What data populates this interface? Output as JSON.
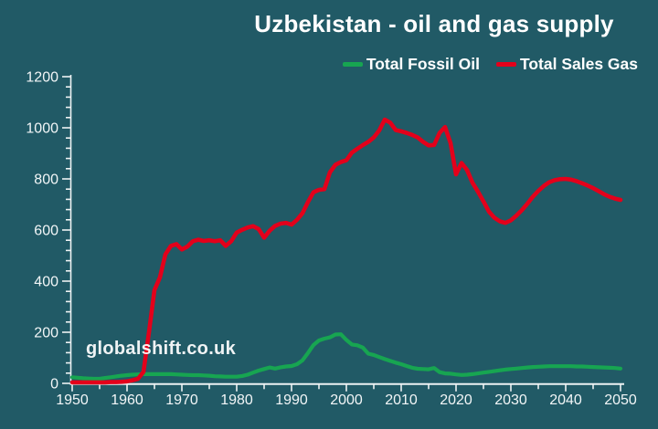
{
  "page": {
    "background_color": "#215A66"
  },
  "header": {
    "title": "Uzbekistan - oil and gas supply"
  },
  "legend": {
    "position": "top-right",
    "items": [
      {
        "label": "Total Fossil Oil",
        "color": "#17A551",
        "icon": "line-dash-icon"
      },
      {
        "label": "Total Sales Gas",
        "color": "#E3001B",
        "icon": "line-dash-icon"
      }
    ]
  },
  "watermark": {
    "text": "globalshift.co.uk"
  },
  "chart_data": {
    "type": "line",
    "title": "Uzbekistan - oil and gas supply",
    "xlabel": "",
    "ylabel": "",
    "xlim": [
      1950,
      2050
    ],
    "ylim": [
      0,
      1200
    ],
    "x_start": 1950,
    "x_step": 1,
    "x_ticks": [
      1950,
      1960,
      1970,
      1980,
      1990,
      2000,
      2010,
      2020,
      2030,
      2040,
      2050
    ],
    "x_minor_step": 5,
    "y_ticks": [
      0,
      200,
      400,
      600,
      800,
      1000,
      1200
    ],
    "y_minor_step": 40,
    "grid": false,
    "legend_position": "top-right",
    "axis_color": "#EDF2F3",
    "text_color": "#F2F6F7",
    "series": [
      {
        "name": "Total Fossil Oil",
        "color": "#17A551",
        "values": [
          24,
          22,
          20,
          19,
          18,
          18,
          21,
          24,
          27,
          30,
          32,
          34,
          35,
          36,
          36,
          36,
          36,
          36,
          36,
          35,
          34,
          33,
          32,
          32,
          31,
          30,
          28,
          27,
          26,
          26,
          26,
          29,
          34,
          42,
          50,
          56,
          62,
          58,
          63,
          66,
          68,
          75,
          90,
          119,
          150,
          168,
          175,
          180,
          191,
          192,
          170,
          152,
          149,
          140,
          116,
          111,
          103,
          95,
          88,
          81,
          75,
          68,
          61,
          57,
          56,
          55,
          60,
          44,
          39,
          38,
          35,
          33,
          34,
          36,
          39,
          42,
          45,
          48,
          51,
          54,
          56,
          58,
          60,
          62,
          64,
          65,
          66,
          67,
          67,
          67,
          67,
          67,
          66,
          66,
          65,
          64,
          63,
          62,
          61,
          60,
          58
        ]
      },
      {
        "name": "Total Sales Gas",
        "color": "#E3001B",
        "values": [
          4,
          4,
          4,
          4,
          4,
          4,
          4,
          5,
          5,
          6,
          8,
          12,
          18,
          45,
          200,
          365,
          415,
          505,
          538,
          545,
          524,
          535,
          556,
          562,
          557,
          560,
          556,
          560,
          538,
          556,
          590,
          601,
          610,
          615,
          604,
          570,
          597,
          616,
          625,
          628,
          621,
          640,
          666,
          710,
          748,
          757,
          760,
          826,
          855,
          866,
          873,
          903,
          918,
          932,
          945,
          962,
          990,
          1032,
          1020,
          991,
          986,
          980,
          972,
          962,
          945,
          931,
          933,
          980,
          1003,
          940,
          818,
          862,
          835,
          785,
          750,
          712,
          672,
          648,
          634,
          628,
          638,
          656,
          678,
          703,
          730,
          753,
          772,
          787,
          795,
          799,
          800,
          797,
          791,
          783,
          774,
          764,
          752,
          740,
          730,
          723,
          718
        ]
      }
    ]
  }
}
